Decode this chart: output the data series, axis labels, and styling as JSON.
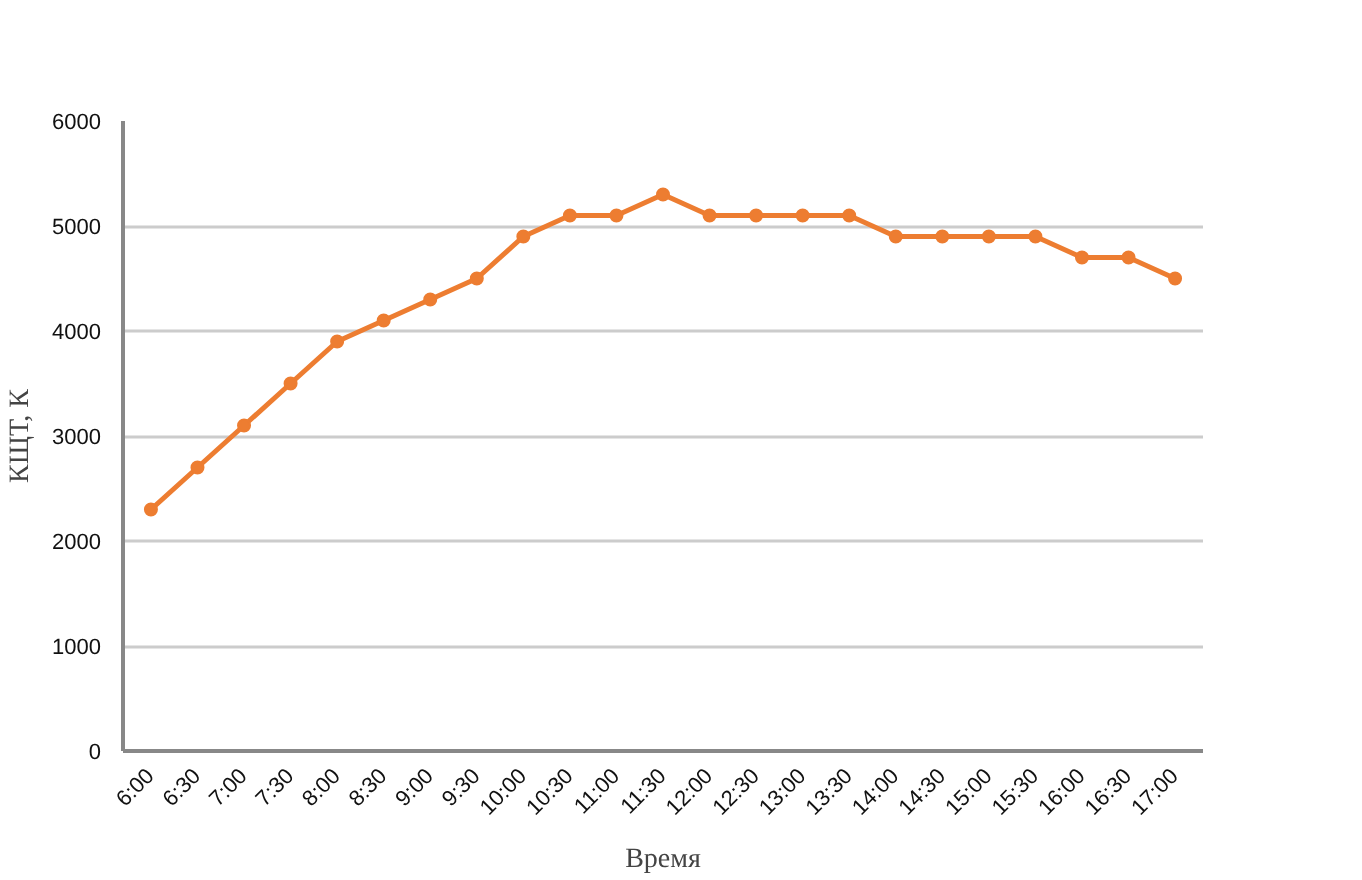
{
  "chart_data": {
    "type": "line",
    "xlabel": "Время",
    "ylabel": "КЩТ, К",
    "categories": [
      "6:00",
      "6:30",
      "7:00",
      "7:30",
      "8:00",
      "8:30",
      "9:00",
      "9:30",
      "10:00",
      "10:30",
      "11:00",
      "11:30",
      "12:00",
      "12:30",
      "13:00",
      "13:30",
      "14:00",
      "14:30",
      "15:00",
      "15:30",
      "16:00",
      "16:30",
      "17:00"
    ],
    "series": [
      {
        "color": "#ed7d31",
        "values": [
          2300,
          2700,
          3100,
          3500,
          3900,
          4100,
          4300,
          4500,
          4900,
          5100,
          5100,
          5300,
          5100,
          5100,
          5100,
          5100,
          4900,
          4900,
          4900,
          4900,
          4700,
          4700,
          4500
        ]
      }
    ],
    "ylim": [
      0,
      6000
    ],
    "yticks": [
      0,
      1000,
      2000,
      3000,
      4000,
      5000,
      6000
    ],
    "grid": "y",
    "marker": "circle",
    "line_style": "solid"
  }
}
